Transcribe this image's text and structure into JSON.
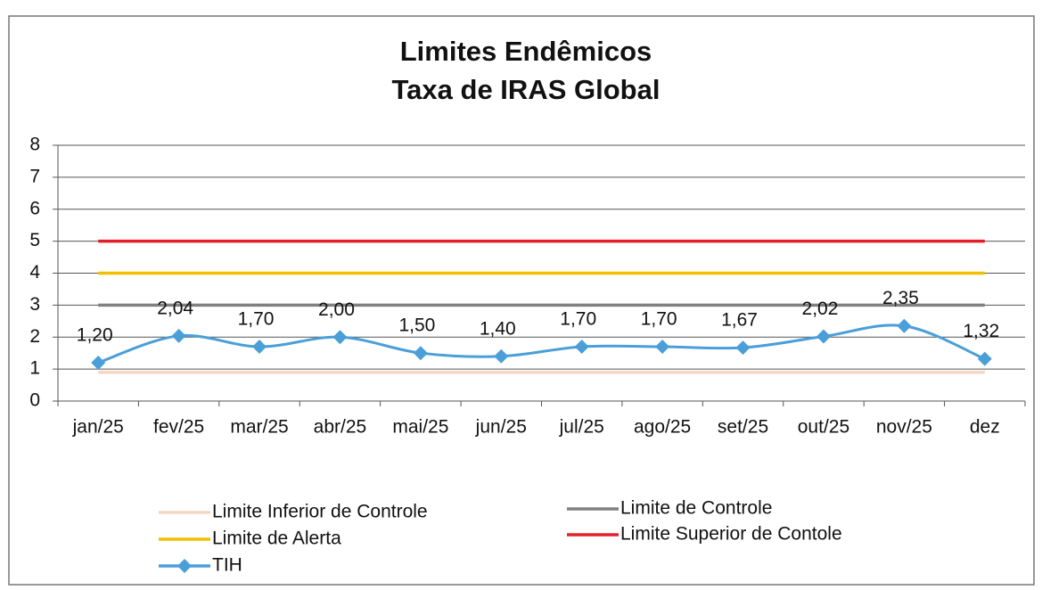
{
  "chart_data": {
    "type": "line",
    "title": "Limites Endêmicos",
    "subtitle": "Taxa de IRAS Global",
    "categories": [
      "jan/25",
      "fev/25",
      "mar/25",
      "abr/25",
      "mai/25",
      "jun/25",
      "jul/25",
      "ago/25",
      "set/25",
      "out/25",
      "nov/25",
      "dez"
    ],
    "series": [
      {
        "name": "Limite Inferior de Controle",
        "color": "#f3d6c4",
        "values": [
          0.9,
          0.9,
          0.9,
          0.9,
          0.9,
          0.9,
          0.9,
          0.9,
          0.9,
          0.9,
          0.9,
          0.9
        ]
      },
      {
        "name": "Limite de Controle",
        "color": "#808080",
        "values": [
          3,
          3,
          3,
          3,
          3,
          3,
          3,
          3,
          3,
          3,
          3,
          3
        ]
      },
      {
        "name": "Limite de Alerta",
        "color": "#f2bf00",
        "values": [
          4,
          4,
          4,
          4,
          4,
          4,
          4,
          4,
          4,
          4,
          4,
          4
        ]
      },
      {
        "name": "Limite Superior de Contole",
        "color": "#e3202a",
        "values": [
          5,
          5,
          5,
          5,
          5,
          5,
          5,
          5,
          5,
          5,
          5,
          5
        ]
      },
      {
        "name": "TIH",
        "color": "#4a9fd8",
        "marker": "diamond",
        "smooth": true,
        "values": [
          1.2,
          2.04,
          1.7,
          2.0,
          1.5,
          1.4,
          1.7,
          1.7,
          1.67,
          2.02,
          2.35,
          1.32
        ],
        "value_labels": [
          "1,20",
          "2,04",
          "1,70",
          "2,00",
          "1,50",
          "1,40",
          "1,70",
          "1,70",
          "1,67",
          "2,02",
          "2,35",
          "1,32"
        ]
      }
    ],
    "ylim": [
      0,
      8
    ],
    "yticks": [
      0,
      1,
      2,
      3,
      4,
      5,
      6,
      7,
      8
    ],
    "grid": true,
    "legend": "bottom"
  }
}
